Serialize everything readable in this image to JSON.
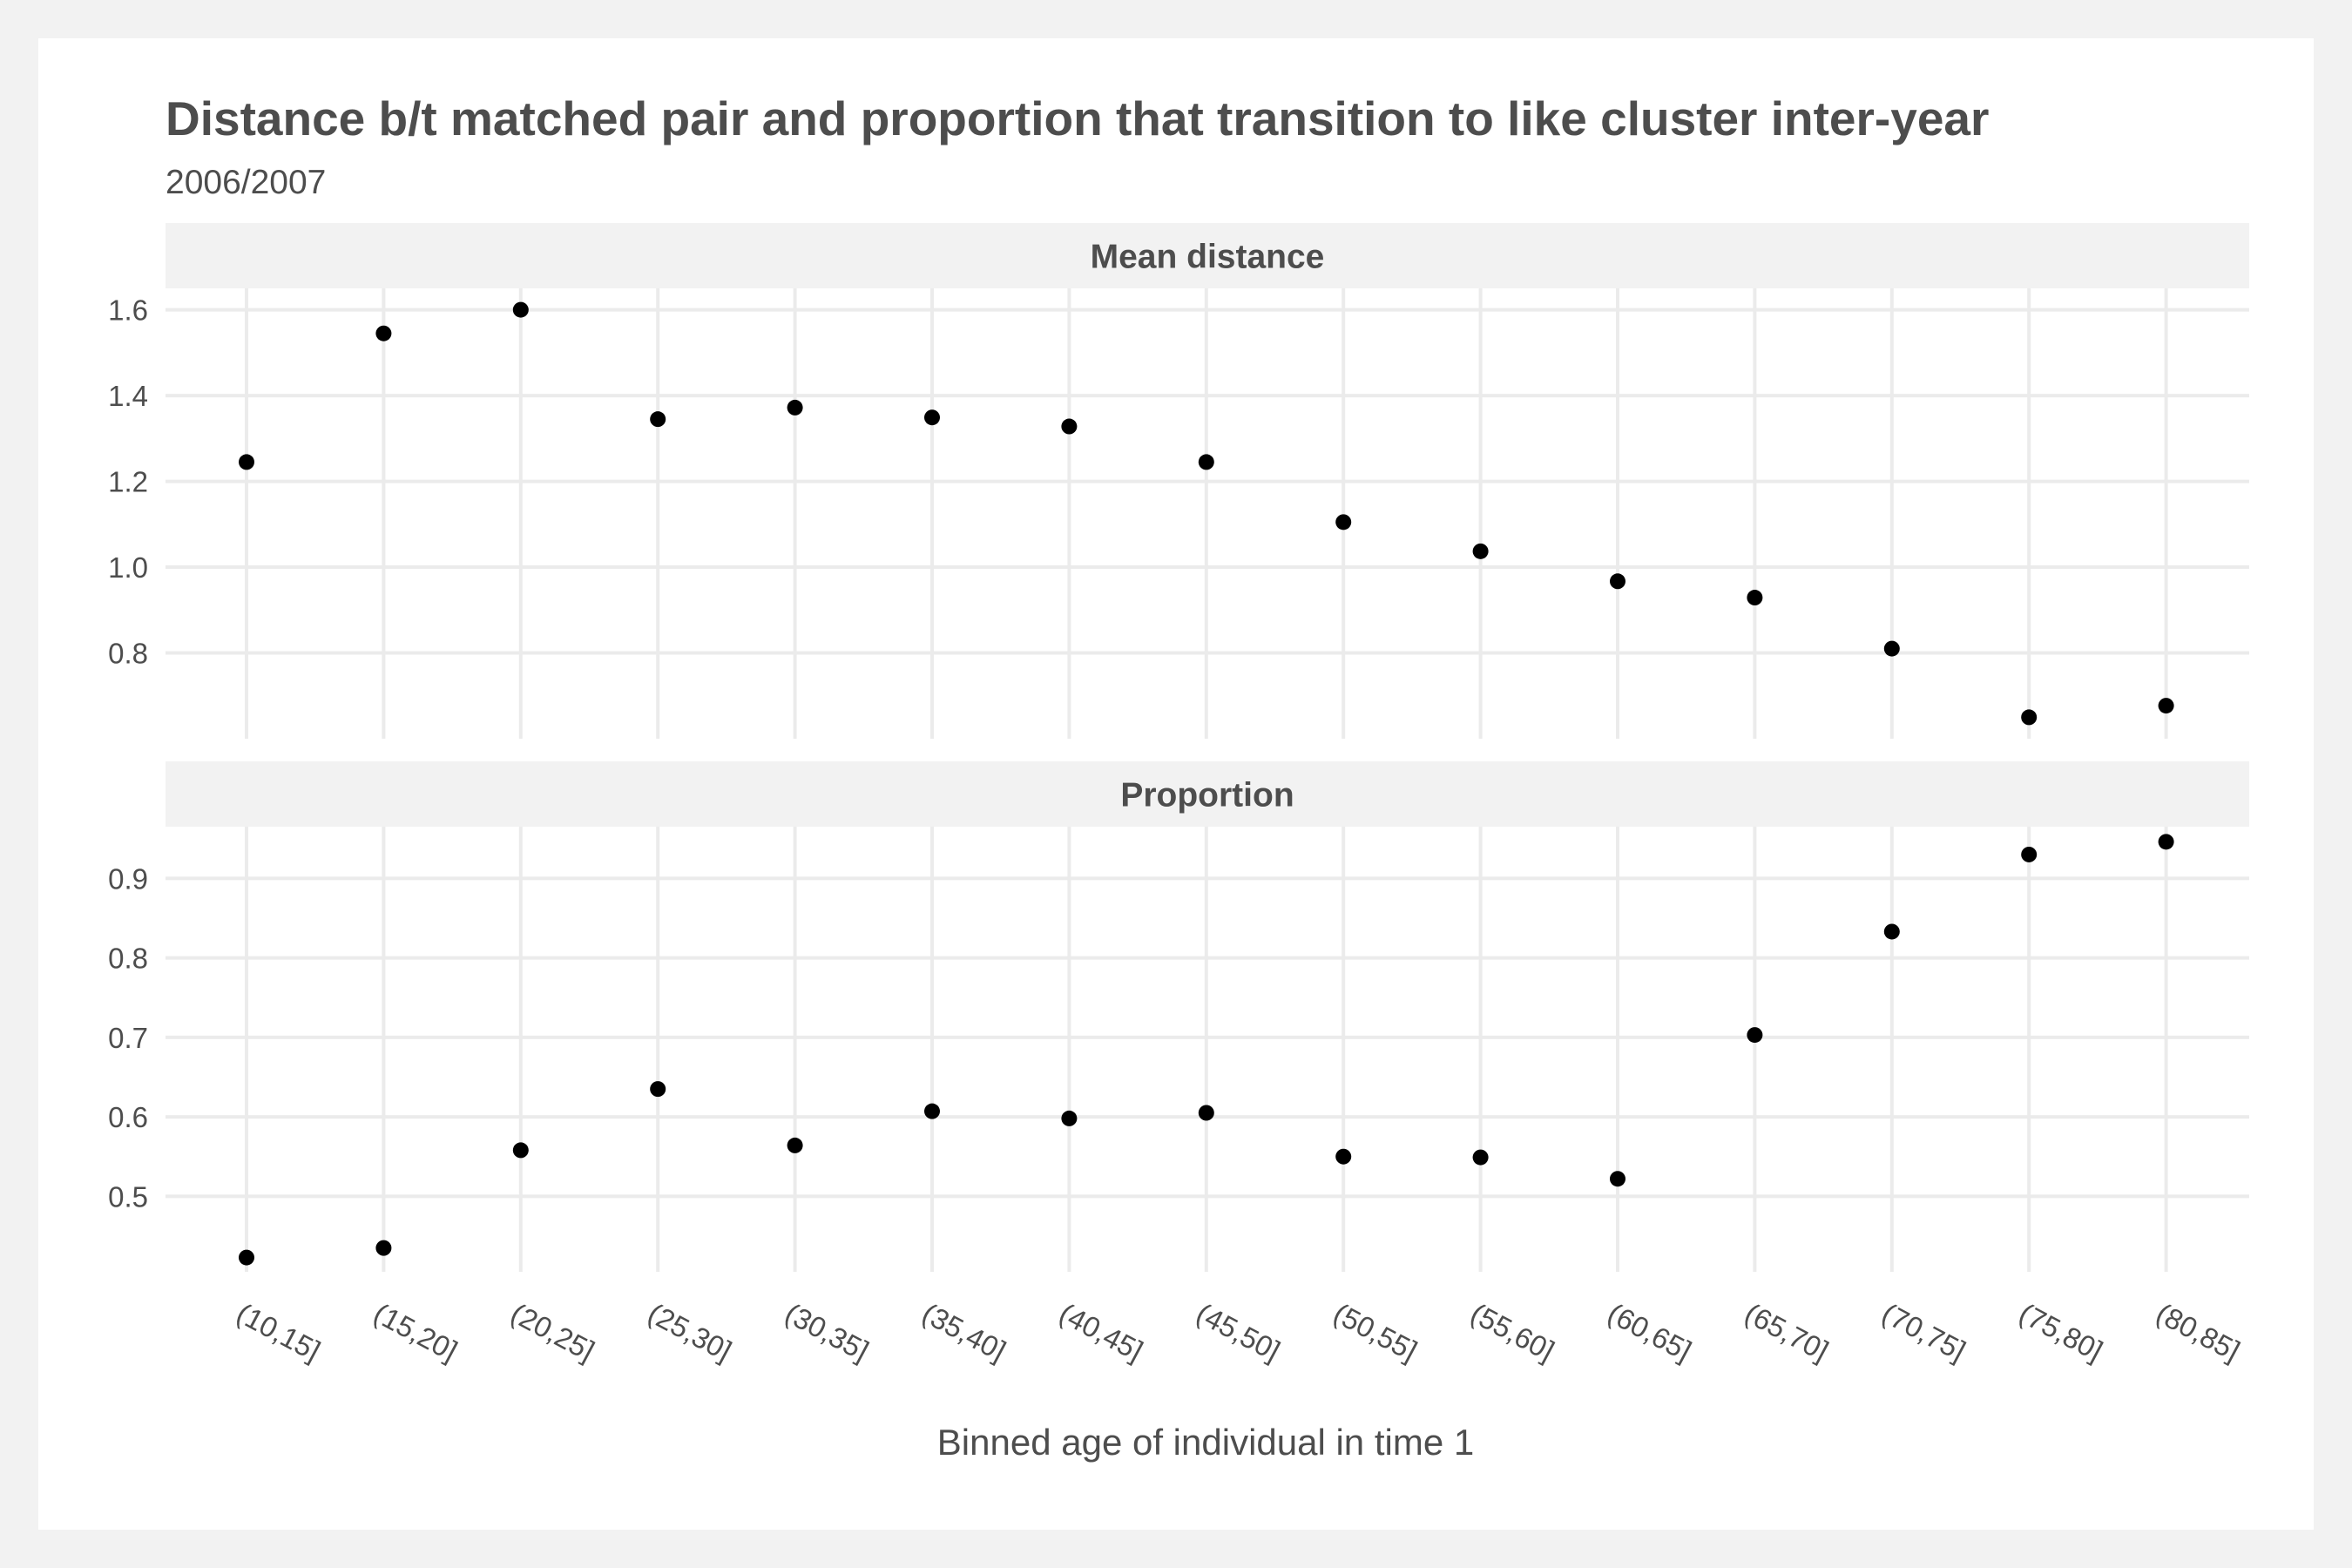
{
  "chart_data": {
    "type": "scatter",
    "title": "Distance b/t matched pair and proportion that transition to like cluster inter-year",
    "subtitle": "2006/2007",
    "xlabel": "Binned age of individual in time 1",
    "categories": [
      "(10,15]",
      "(15,20]",
      "(20,25]",
      "(25,30]",
      "(30,35]",
      "(35,40]",
      "(40,45]",
      "(45,50]",
      "(50,55]",
      "(55,60]",
      "(60,65]",
      "(65,70]",
      "(70,75]",
      "(75,80]",
      "(80,85]"
    ],
    "grid": true,
    "legend": "none",
    "point_color": "#000000",
    "panels": [
      {
        "name": "Mean distance",
        "ylim": [
          0.6,
          1.65
        ],
        "yticks": [
          0.8,
          1.0,
          1.2,
          1.4,
          1.6
        ],
        "ytick_labels": [
          "0.8",
          "1.0",
          "1.2",
          "1.4",
          "1.6"
        ],
        "values": [
          1.245,
          1.545,
          1.6,
          1.345,
          1.372,
          1.349,
          1.328,
          1.245,
          1.105,
          1.037,
          0.967,
          0.929,
          0.81,
          0.65,
          0.677
        ]
      },
      {
        "name": "Proportion",
        "ylim": [
          0.405,
          0.965
        ],
        "yticks": [
          0.5,
          0.6,
          0.7,
          0.8,
          0.9
        ],
        "ytick_labels": [
          "0.5",
          "0.6",
          "0.7",
          "0.8",
          "0.9"
        ],
        "values": [
          0.423,
          0.435,
          0.558,
          0.635,
          0.564,
          0.607,
          0.598,
          0.605,
          0.55,
          0.549,
          0.522,
          0.703,
          0.833,
          0.93,
          0.946
        ]
      }
    ]
  }
}
